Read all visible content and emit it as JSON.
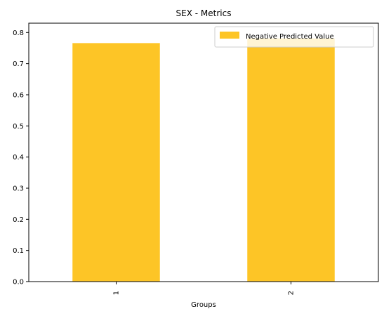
{
  "chart_data": {
    "type": "bar",
    "title": "SEX - Metrics",
    "xlabel": "Groups",
    "ylabel": "",
    "categories": [
      "1",
      "2"
    ],
    "series": [
      {
        "name": "Negative Predicted Value",
        "values": [
          0.766,
          0.781
        ],
        "color": "#fdc526"
      }
    ],
    "ylim": [
      0,
      0.83
    ],
    "yticks": [
      "0.0",
      "0.1",
      "0.2",
      "0.3",
      "0.4",
      "0.5",
      "0.6",
      "0.7",
      "0.8"
    ],
    "grid": false,
    "legend_position": "top-right"
  }
}
